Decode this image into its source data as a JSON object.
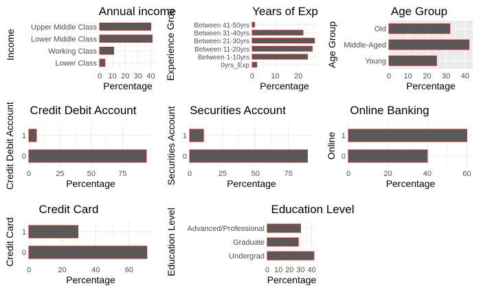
{
  "colors": {
    "bar_fill": "#595959",
    "bar_stroke": "#cc2222",
    "panel_bg": "#ebebeb",
    "grid": "#ffffff",
    "white_grid": "#ebebeb",
    "text": "#000000",
    "tick_text": "#4d4d4d"
  },
  "chart_data": [
    {
      "type": "bar",
      "orientation": "horizontal",
      "title": "Annual income",
      "xlabel": "Percentage",
      "ylabel": "Income",
      "categories": [
        "Lower Class",
        "Working Class",
        "Lower Middle Class",
        "Upper Middle Class"
      ],
      "values": [
        4,
        11,
        41,
        40
      ],
      "xlim": [
        0,
        44
      ],
      "xticks": [
        0,
        10,
        20,
        30,
        40
      ],
      "panel_bg": "#ffffff"
    },
    {
      "type": "bar",
      "orientation": "horizontal",
      "title": "Years of Exp",
      "xlabel": "Percentage",
      "ylabel": "Experience Grou",
      "categories": [
        "0yrs_Exp",
        "Between 1-10yrs",
        "Between 11-20yrs",
        "Between 21-30yrs",
        "Between 31-40yrs",
        "Between 41-50yrs"
      ],
      "values": [
        2,
        24,
        26,
        27,
        22,
        1
      ],
      "xlim": [
        0,
        28
      ],
      "xticks": [
        0,
        10,
        20
      ],
      "panel_bg": "#ffffff"
    },
    {
      "type": "bar",
      "orientation": "horizontal",
      "title": "Age Group",
      "xlabel": "Percentage",
      "ylabel": "Age Group",
      "categories": [
        "Young",
        "Middle-Aged",
        "Old"
      ],
      "values": [
        25,
        42,
        32
      ],
      "xlim": [
        0,
        44
      ],
      "xticks": [
        0,
        10,
        20,
        30,
        40
      ],
      "panel_bg": "#ebebeb"
    },
    {
      "type": "bar",
      "orientation": "horizontal",
      "title": "Credit Debit Account",
      "xlabel": "Percentage",
      "ylabel": "Credit Debit Account",
      "categories": [
        "0",
        "1"
      ],
      "values": [
        94,
        6
      ],
      "xlim": [
        0,
        99
      ],
      "xticks": [
        0,
        25,
        50,
        75
      ],
      "panel_bg": "#ffffff"
    },
    {
      "type": "bar",
      "orientation": "horizontal",
      "title": "Securities Account",
      "xlabel": "Percentage",
      "ylabel": "Securities Account",
      "categories": [
        "0",
        "1"
      ],
      "values": [
        89.5,
        10.5
      ],
      "xlim": [
        0,
        94
      ],
      "xticks": [
        0,
        25,
        50,
        75
      ],
      "panel_bg": "#ffffff"
    },
    {
      "type": "bar",
      "orientation": "horizontal",
      "title": "Online Banking",
      "xlabel": "Percentage",
      "ylabel": "Online",
      "categories": [
        "0",
        "1"
      ],
      "values": [
        40,
        60
      ],
      "xlim": [
        0,
        63
      ],
      "xticks": [
        0,
        20,
        40,
        60
      ],
      "panel_bg": "#ffffff"
    },
    {
      "type": "bar",
      "orientation": "horizontal",
      "title": "Credit Card",
      "xlabel": "Percentage",
      "ylabel": "Credit Card",
      "categories": [
        "0",
        "1"
      ],
      "values": [
        70.6,
        29.4
      ],
      "xlim": [
        0,
        74
      ],
      "xticks": [
        0,
        20,
        40,
        60
      ],
      "panel_bg": "#ffffff"
    },
    {
      "type": "bar",
      "orientation": "horizontal",
      "title": "Education Level",
      "xlabel": "Percentage",
      "ylabel": "Education Level",
      "categories": [
        "Undergrad",
        "Graduate",
        "Advanced/Professional"
      ],
      "values": [
        42,
        28,
        30
      ],
      "xlim": [
        0,
        44
      ],
      "xticks": [
        0,
        10,
        20,
        30,
        40
      ],
      "panel_bg": "#ffffff"
    }
  ]
}
